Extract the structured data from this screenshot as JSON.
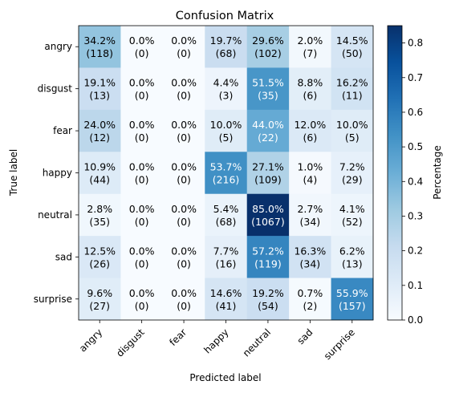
{
  "chart_data": {
    "type": "heatmap",
    "title": "Confusion Matrix",
    "xlabel": "Predicted label",
    "ylabel": "True label",
    "colorbar_label": "Percentage",
    "colormap": "Blues",
    "vmin": 0.0,
    "vmax": 0.85,
    "colorbar_ticks": [
      "0.0",
      "0.1",
      "0.2",
      "0.3",
      "0.4",
      "0.5",
      "0.6",
      "0.7",
      "0.8"
    ],
    "x_categories": [
      "angry",
      "disgust",
      "fear",
      "happy",
      "neutral",
      "sad",
      "surprise"
    ],
    "y_categories": [
      "angry",
      "disgust",
      "fear",
      "happy",
      "neutral",
      "sad",
      "surprise"
    ],
    "percentages": [
      [
        34.2,
        0.0,
        0.0,
        19.7,
        29.6,
        2.0,
        14.5
      ],
      [
        19.1,
        0.0,
        0.0,
        4.4,
        51.5,
        8.8,
        16.2
      ],
      [
        24.0,
        0.0,
        0.0,
        10.0,
        44.0,
        12.0,
        10.0
      ],
      [
        10.9,
        0.0,
        0.0,
        53.7,
        27.1,
        1.0,
        7.2
      ],
      [
        2.8,
        0.0,
        0.0,
        5.4,
        85.0,
        2.7,
        4.1
      ],
      [
        12.5,
        0.0,
        0.0,
        7.7,
        57.2,
        16.3,
        6.2
      ],
      [
        9.6,
        0.0,
        0.0,
        14.6,
        19.2,
        0.7,
        55.9
      ]
    ],
    "counts": [
      [
        118,
        0,
        0,
        68,
        102,
        7,
        50
      ],
      [
        13,
        0,
        0,
        3,
        35,
        6,
        11
      ],
      [
        12,
        0,
        0,
        5,
        22,
        6,
        5
      ],
      [
        44,
        0,
        0,
        216,
        109,
        4,
        29
      ],
      [
        35,
        0,
        0,
        68,
        1067,
        34,
        52
      ],
      [
        26,
        0,
        0,
        16,
        119,
        34,
        13
      ],
      [
        27,
        0,
        0,
        41,
        54,
        2,
        157
      ]
    ]
  }
}
